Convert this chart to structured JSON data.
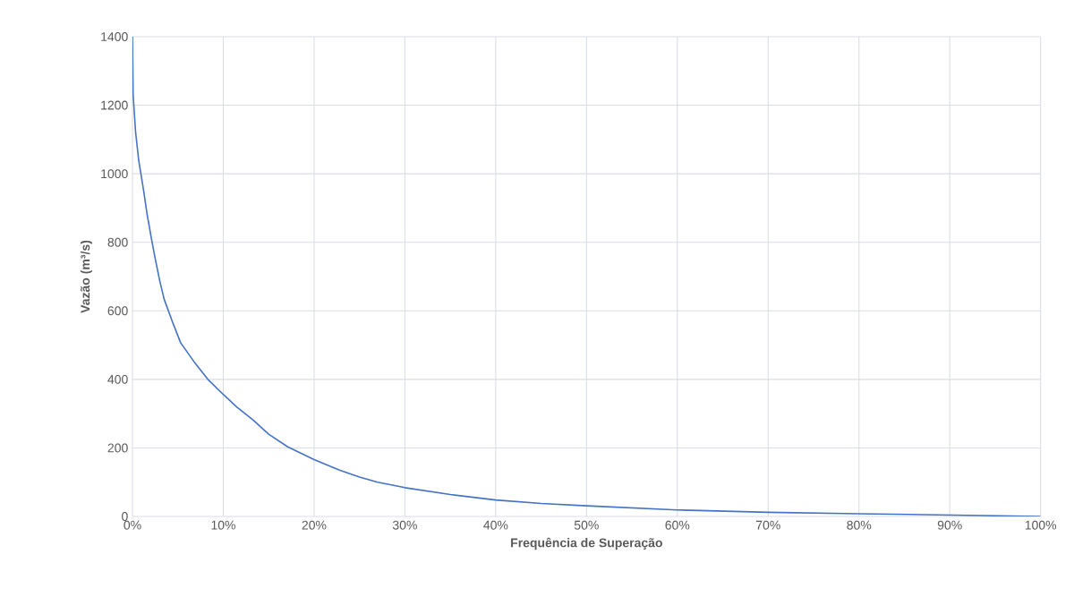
{
  "chart_data": {
    "type": "line",
    "xlabel": "Frequência de Superação",
    "ylabel": "Vazão (m³/s)",
    "x": [
      0,
      0.07,
      0.35,
      0.7,
      1.24,
      1.6,
      2.1,
      2.5,
      3.0,
      3.5,
      4.4,
      5.3,
      6.9,
      8.3,
      10,
      11.5,
      13.3,
      15,
      17.1,
      20,
      22.8,
      25,
      27,
      30,
      35,
      40,
      45,
      50,
      60,
      70,
      80,
      90,
      100
    ],
    "series": [
      {
        "color": "#4472c4",
        "values": [
          1400,
          1232,
          1120,
          1037,
          949,
          884,
          809,
          753,
          688,
          633,
          568,
          507,
          447,
          400,
          356,
          319,
          281,
          240,
          203,
          166,
          135,
          115,
          100,
          84,
          64,
          48,
          38,
          31,
          19,
          12,
          8,
          4,
          0
        ]
      }
    ],
    "xlim": [
      0,
      100
    ],
    "ylim": [
      0,
      1400
    ],
    "xticks": [
      {
        "value": 0,
        "label": "0%"
      },
      {
        "value": 10,
        "label": "10%"
      },
      {
        "value": 20,
        "label": "20%"
      },
      {
        "value": 30,
        "label": "30%"
      },
      {
        "value": 40,
        "label": "40%"
      },
      {
        "value": 50,
        "label": "50%"
      },
      {
        "value": 60,
        "label": "60%"
      },
      {
        "value": 70,
        "label": "70%"
      },
      {
        "value": 80,
        "label": "80%"
      },
      {
        "value": 90,
        "label": "90%"
      },
      {
        "value": 100,
        "label": "100%"
      }
    ],
    "yticks": [
      0,
      200,
      400,
      600,
      800,
      1000,
      1200,
      1400
    ],
    "grid": true,
    "marker": "none",
    "line_style": "solid"
  }
}
